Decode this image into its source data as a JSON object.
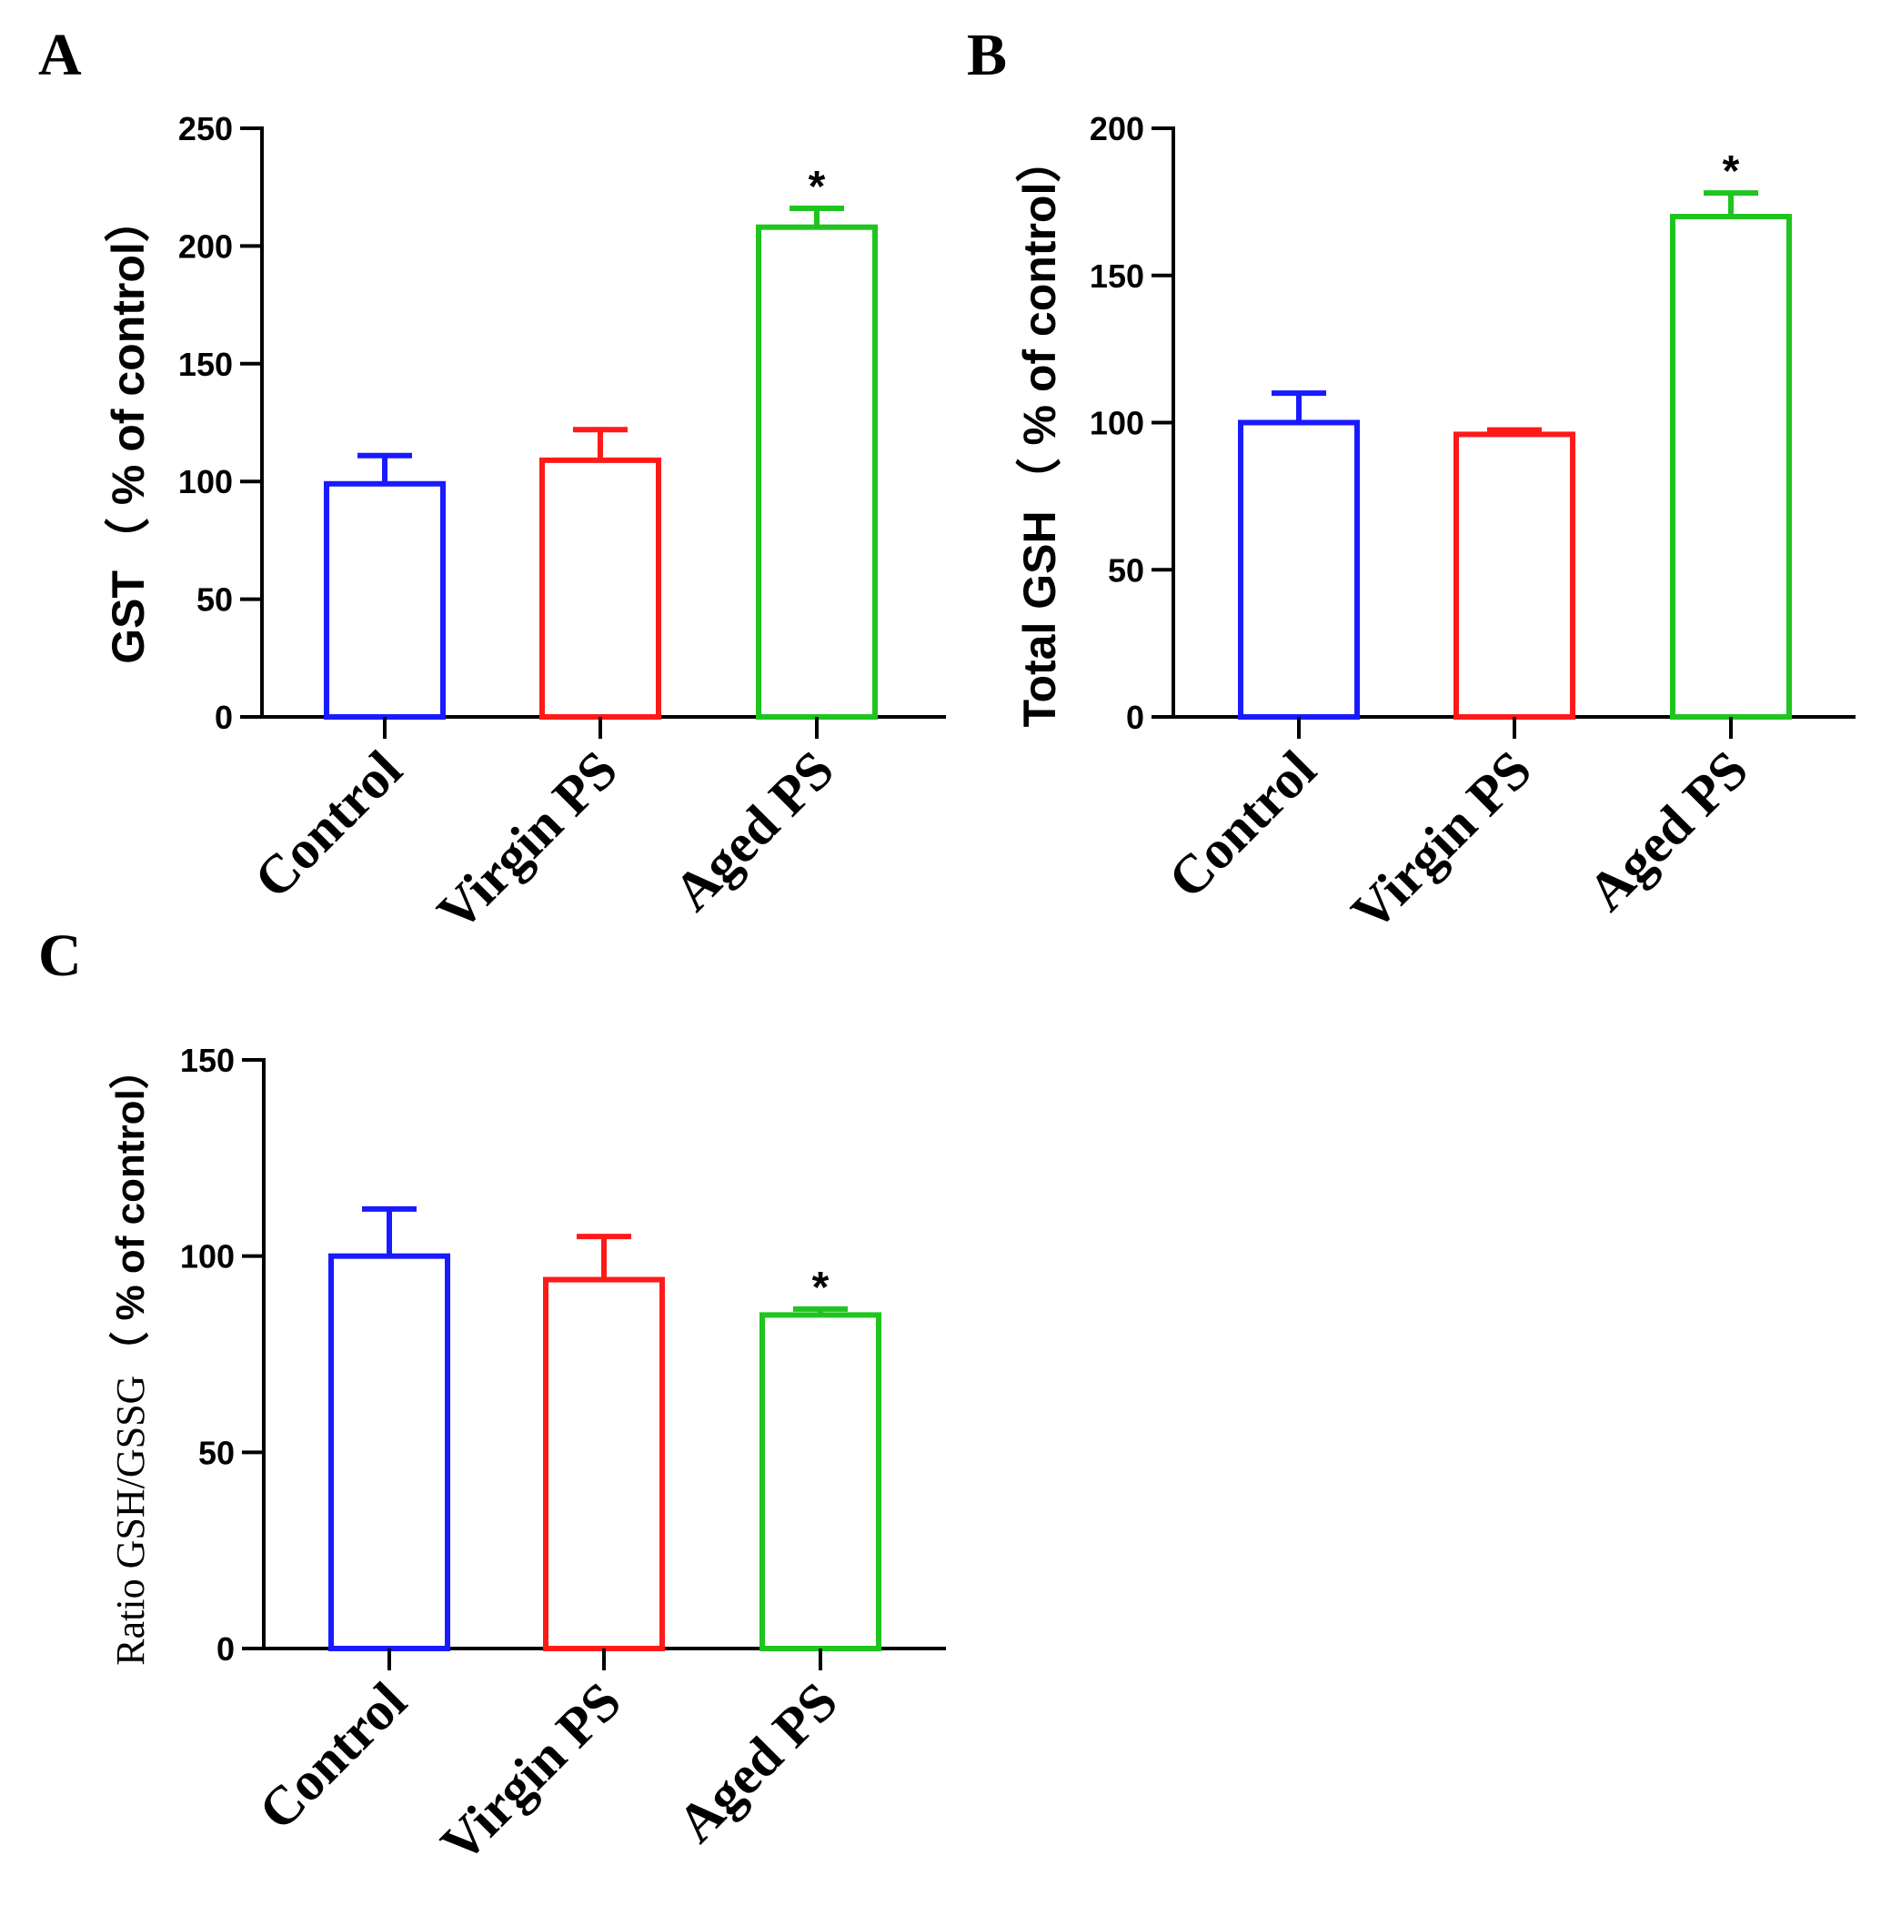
{
  "figure": {
    "description_panels": [
      "A",
      "B",
      "C"
    ]
  },
  "chart_data": [
    {
      "panel": "A",
      "type": "bar",
      "categories": [
        "Control",
        "Virgin PS",
        "Aged PS"
      ],
      "values": [
        99,
        109,
        208
      ],
      "errors": [
        12,
        13,
        8
      ],
      "significance": [
        "",
        "",
        "*"
      ],
      "colors": [
        "#1a1aff",
        "#ff1a1a",
        "#1fc41f"
      ],
      "ylabel_main": "GST",
      "ylabel_unit": "（ % of control）",
      "ylim": [
        0,
        250
      ],
      "yticks": [
        0,
        50,
        100,
        150,
        200,
        250
      ],
      "ytick_labels": [
        "0",
        "50",
        "100",
        "150",
        "200",
        "250"
      ]
    },
    {
      "panel": "B",
      "type": "bar",
      "categories": [
        "Control",
        "Virgin PS",
        "Aged PS"
      ],
      "values": [
        100,
        96,
        170
      ],
      "errors": [
        10,
        1.5,
        8
      ],
      "significance": [
        "",
        "",
        "*"
      ],
      "colors": [
        "#1a1aff",
        "#ff1a1a",
        "#1fc41f"
      ],
      "ylabel_main": "Total GSH",
      "ylabel_unit": "（ % of control）",
      "ylim": [
        0,
        200
      ],
      "yticks": [
        0,
        50,
        100,
        150,
        200
      ],
      "ytick_labels": [
        "0",
        "50",
        "100",
        "150",
        "200"
      ]
    },
    {
      "panel": "C",
      "type": "bar",
      "categories": [
        "Control",
        "Virgin PS",
        "Aged PS"
      ],
      "values": [
        100,
        94,
        85
      ],
      "errors": [
        12,
        11,
        1.5
      ],
      "significance": [
        "",
        "",
        "*"
      ],
      "colors": [
        "#1a1aff",
        "#ff1a1a",
        "#1fc41f"
      ],
      "ylabel_main": "Ratio GSH/GSSG",
      "ylabel_unit": "（ %  of control）",
      "ylim": [
        0,
        150
      ],
      "yticks": [
        0,
        50,
        100,
        150
      ],
      "ytick_labels": [
        "0",
        "50",
        "100",
        "150"
      ]
    }
  ]
}
